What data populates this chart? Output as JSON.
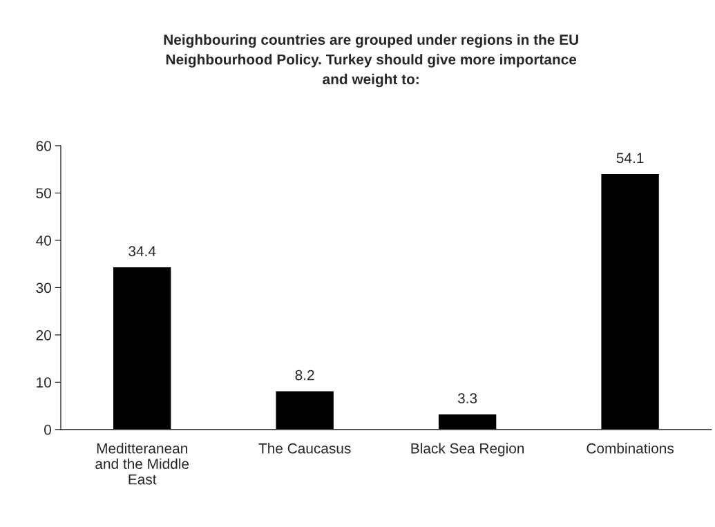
{
  "chart_data": {
    "type": "bar",
    "title": "Neighbouring countries are grouped under regions in the EU Neighbourhood Policy. Turkey should give more importance and weight to:",
    "categories": [
      "Meditteranean and the Middle East",
      "The Caucasus",
      "Black Sea Region",
      "Combinations"
    ],
    "values": [
      34.4,
      8.2,
      3.3,
      54.1
    ],
    "color": "#000000",
    "ylim": [
      0,
      60
    ],
    "yticks": [
      0,
      10,
      20,
      30,
      40,
      50,
      60
    ],
    "grid": false,
    "data_labels": true
  }
}
